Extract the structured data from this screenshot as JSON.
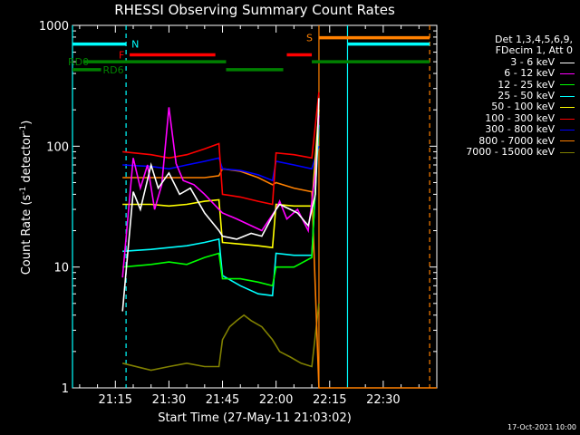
{
  "chart_data": {
    "type": "line",
    "title": "RHESSI Observing Summary Count Rates",
    "xlabel": "Start Time (27-May-11 21:03:02)",
    "ylabel": "Count Rate (s⁻¹ detector⁻¹)",
    "yscale": "log",
    "ylim": [
      1,
      1000
    ],
    "xlim": [
      "21:03",
      "22:45"
    ],
    "xticks": [
      "21:15",
      "21:30",
      "21:45",
      "22:00",
      "22:15",
      "22:30"
    ],
    "yticks": [
      "1",
      "10",
      "100",
      "1000"
    ],
    "legend_header": [
      "Det 1,3,4,5,6,9,",
      "FDecim 1, Att 0"
    ],
    "legend_position": "right",
    "series": [
      {
        "name": "3 - 6 keV",
        "color": "#ffffff",
        "x": [
          "21:17",
          "21:20",
          "21:22",
          "21:25",
          "21:27",
          "21:30",
          "21:33",
          "21:36",
          "21:40",
          "21:44",
          "21:45",
          "21:49",
          "21:53",
          "21:56",
          "22:00",
          "22:01",
          "22:04",
          "22:06",
          "22:09",
          "22:11",
          "22:12"
        ],
        "y": [
          4.3,
          42,
          30,
          70,
          45,
          60,
          40,
          45,
          28,
          20,
          18,
          17,
          19,
          18,
          30,
          33,
          30,
          28,
          22,
          40,
          250
        ]
      },
      {
        "name": "6 - 12 keV",
        "color": "#ff00ff",
        "x": [
          "21:17",
          "21:20",
          "21:22",
          "21:24",
          "21:26",
          "21:28",
          "21:30",
          "21:32",
          "21:34",
          "21:37",
          "21:40",
          "21:44",
          "21:45",
          "21:49",
          "21:53",
          "21:56",
          "22:00",
          "22:01",
          "22:03",
          "22:06",
          "22:09",
          "22:11",
          "22:12"
        ],
        "y": [
          8.2,
          80,
          45,
          70,
          30,
          48,
          210,
          72,
          52,
          48,
          40,
          30,
          28,
          25,
          22,
          20,
          30,
          35,
          25,
          30,
          20,
          60,
          180
        ]
      },
      {
        "name": "12 - 25 keV",
        "color": "#00ff00",
        "x": [
          "21:17",
          "21:25",
          "21:30",
          "21:35",
          "21:40",
          "21:44",
          "21:45",
          "21:50",
          "21:55",
          "21:59",
          "22:00",
          "22:05",
          "22:10",
          "22:12"
        ],
        "y": [
          10,
          10.5,
          11,
          10.5,
          12,
          13,
          8,
          8,
          7.5,
          7,
          10,
          10,
          12,
          180
        ]
      },
      {
        "name": "25 - 50 keV",
        "color": "#00ffff",
        "x": [
          "21:17",
          "21:25",
          "21:30",
          "21:35",
          "21:40",
          "21:44",
          "21:45",
          "21:50",
          "21:55",
          "21:59",
          "22:00",
          "22:05",
          "22:10",
          "22:12"
        ],
        "y": [
          13.5,
          14,
          14.5,
          15,
          16,
          17,
          8.5,
          7,
          6,
          5.8,
          13,
          12.5,
          12.5,
          150
        ]
      },
      {
        "name": "50 - 100 keV",
        "color": "#ffff00",
        "x": [
          "21:17",
          "21:25",
          "21:30",
          "21:35",
          "21:40",
          "21:44",
          "21:45",
          "21:50",
          "21:55",
          "21:59",
          "22:00",
          "22:05",
          "22:10",
          "22:12"
        ],
        "y": [
          33,
          33,
          32,
          33,
          35,
          36,
          16,
          15.5,
          15,
          14.5,
          33,
          32,
          32,
          200
        ]
      },
      {
        "name": "100 - 300 keV",
        "color": "#ff0000",
        "x": [
          "21:17",
          "21:25",
          "21:30",
          "21:35",
          "21:40",
          "21:44",
          "21:45",
          "21:50",
          "21:55",
          "21:59",
          "22:00",
          "22:05",
          "22:10",
          "22:12"
        ],
        "y": [
          90,
          85,
          80,
          85,
          95,
          105,
          40,
          38,
          35,
          33,
          88,
          85,
          80,
          280
        ]
      },
      {
        "name": "300 - 800 keV",
        "color": "#0000ff",
        "x": [
          "21:17",
          "21:25",
          "21:30",
          "21:35",
          "21:40",
          "21:44",
          "21:45",
          "21:50",
          "21:55",
          "21:59",
          "22:00",
          "22:05",
          "22:10",
          "22:12"
        ],
        "y": [
          70,
          68,
          65,
          70,
          75,
          80,
          65,
          63,
          58,
          52,
          75,
          70,
          65,
          100
        ]
      },
      {
        "name": "800 - 7000 keV",
        "color": "#ff8000",
        "x": [
          "21:17",
          "21:25",
          "21:30",
          "21:35",
          "21:40",
          "21:44",
          "21:45",
          "21:50",
          "21:55",
          "21:59",
          "22:00",
          "22:05",
          "22:10",
          "22:12",
          "22:45"
        ],
        "y": [
          55,
          55,
          55,
          55,
          55,
          57,
          65,
          62,
          55,
          48,
          50,
          45,
          42,
          1,
          1
        ]
      },
      {
        "name": "7000 - 15000 keV",
        "color": "#808000",
        "x": [
          "21:17",
          "21:25",
          "21:30",
          "21:35",
          "21:40",
          "21:44",
          "21:45",
          "21:47",
          "21:49",
          "21:51",
          "21:53",
          "21:56",
          "21:59",
          "22:01",
          "22:04",
          "22:07",
          "22:10",
          "22:12"
        ],
        "y": [
          1.6,
          1.4,
          1.5,
          1.6,
          1.5,
          1.5,
          2.5,
          3.2,
          3.6,
          4,
          3.6,
          3.2,
          2.5,
          2,
          1.8,
          1.6,
          1.5,
          5
        ]
      }
    ],
    "state_bars": [
      {
        "label": "N",
        "color": "#00ffff",
        "level": 700,
        "spans": [
          [
            "21:03",
            "21:18"
          ],
          [
            "22:20",
            "22:43"
          ]
        ]
      },
      {
        "label": "F",
        "color": "#ff0000",
        "level": 570,
        "spans": [
          [
            "21:19",
            "21:43"
          ],
          [
            "22:03",
            "22:10"
          ]
        ]
      },
      {
        "label": "S",
        "color": "#ff8000",
        "level": 790,
        "spans": [
          [
            "22:12",
            "22:43"
          ]
        ]
      },
      {
        "label": "RD0",
        "color": "#008000",
        "level": 500,
        "spans": [
          [
            "21:06",
            "21:46"
          ],
          [
            "22:10",
            "22:43"
          ]
        ]
      },
      {
        "label": "RD6",
        "color": "#008000",
        "level": 430,
        "spans": [
          [
            "21:03",
            "21:11"
          ],
          [
            "21:46",
            "22:02"
          ]
        ]
      }
    ],
    "vertical_markers": [
      {
        "time": "21:03",
        "color": "#00ffff",
        "style": "solid"
      },
      {
        "time": "21:18",
        "color": "#00ffff",
        "style": "dashed"
      },
      {
        "time": "22:12",
        "color": "#ff8000",
        "style": "solid"
      },
      {
        "time": "22:20",
        "color": "#00ffff",
        "style": "solid"
      },
      {
        "time": "22:43",
        "color": "#ff8000",
        "style": "dashed"
      }
    ],
    "grid": false
  },
  "footer": {
    "timestamp": "17-Oct-2021 10:00"
  }
}
